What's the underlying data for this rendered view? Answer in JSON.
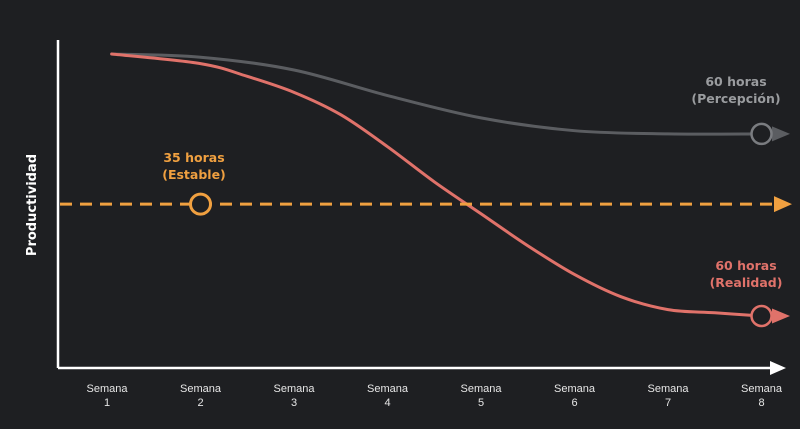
{
  "chart_data": {
    "type": "line",
    "title": "",
    "xlabel": "",
    "ylabel": "Productividad",
    "categories": [
      "Semana\n1",
      "Semana\n2",
      "Semana\n3",
      "Semana\n4",
      "Semana\n5",
      "Semana\n6",
      "Semana\n7",
      "Semana\n8"
    ],
    "y_ticks_shown": false,
    "ylim": [
      0,
      100
    ],
    "grid": false,
    "legend": "none",
    "series": [
      {
        "name": "60 horas (Percepción)",
        "color": "#5b5d61",
        "style": "solid",
        "x": [
          0.55,
          1.5,
          2.5,
          3.5,
          4.5,
          5.5,
          6.5,
          7.5
        ],
        "values": [
          96,
          95,
          91,
          83,
          76,
          72,
          71,
          71
        ],
        "marker_index": 7,
        "annotation_lines": [
          "60 horas",
          "(Percepción)"
        ]
      },
      {
        "name": "60 horas (Realidad)",
        "color": "#e0726a",
        "style": "solid",
        "x": [
          0.55,
          1.5,
          2.0,
          2.5,
          3.0,
          3.5,
          4.0,
          4.5,
          5.0,
          5.5,
          6.0,
          6.5,
          7.0,
          7.5
        ],
        "values": [
          96,
          93,
          89,
          84,
          77,
          67,
          56,
          46,
          36,
          27,
          20,
          16,
          15,
          14
        ],
        "marker_index": 13,
        "annotation_lines": [
          "60 horas",
          "(Realidad)"
        ]
      },
      {
        "name": "35 horas (Estable)",
        "color": "#f0a040",
        "style": "dashed",
        "x": [
          0.0,
          8.0
        ],
        "values": [
          49,
          49
        ],
        "marker_x": 1.5,
        "annotation_lines": [
          "35 horas",
          "(Estable)"
        ]
      }
    ]
  }
}
